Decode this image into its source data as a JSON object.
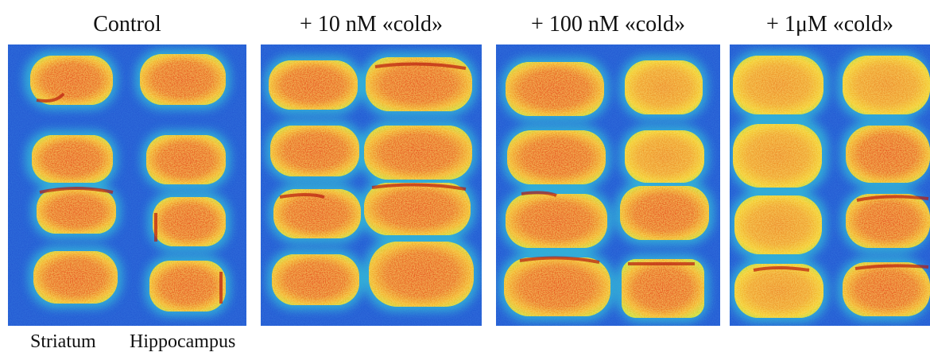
{
  "panels": [
    {
      "title": "Control",
      "key": "control"
    },
    {
      "title": "+ 10 nM «cold»",
      "key": "10nm"
    },
    {
      "title": "+ 100 nM «cold»",
      "key": "100nm"
    },
    {
      "title": "+ 1μM «cold»",
      "key": "1um"
    }
  ],
  "column_labels": {
    "left": "Striatum",
    "right": "Hippocampus"
  },
  "colormap": {
    "background": "#1a4fd0",
    "low": "#2fb8e0",
    "mid": "#9fdc4a",
    "high": "#f2d52a",
    "hot": "#e8441e",
    "peak": "#b8180c"
  }
}
